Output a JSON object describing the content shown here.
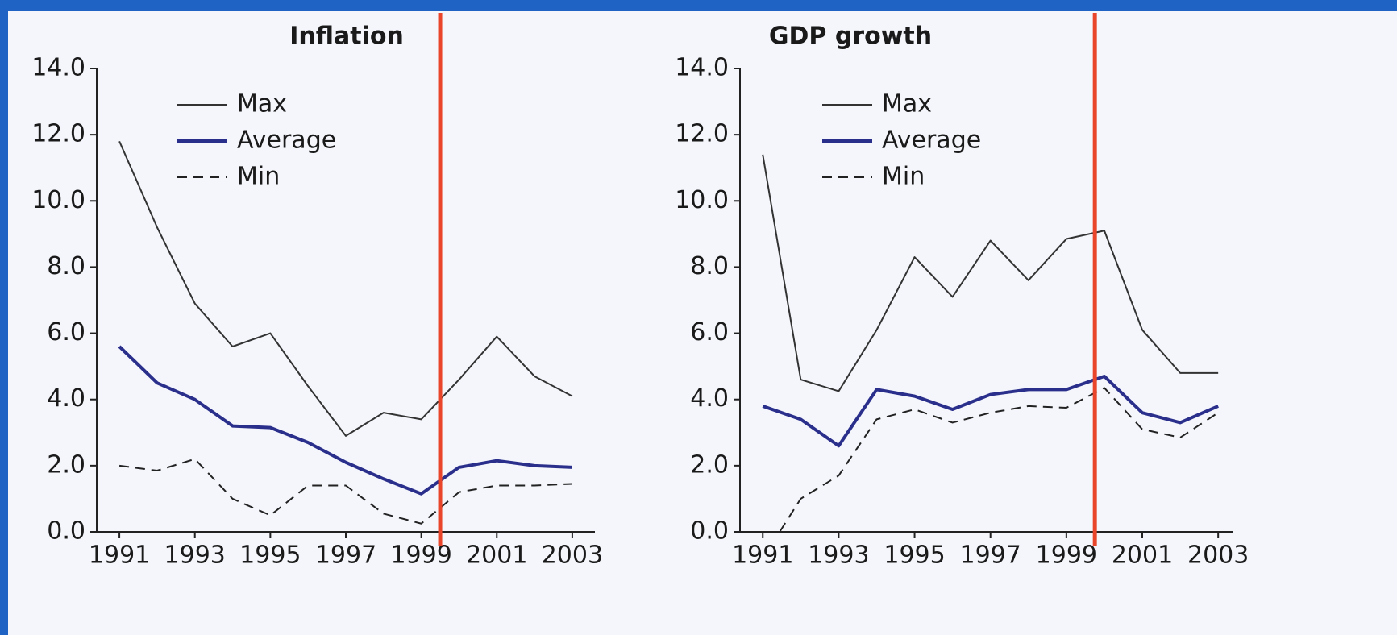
{
  "chart_data": [
    {
      "type": "line",
      "title": "Inflation",
      "x": [
        1991,
        1992,
        1993,
        1994,
        1995,
        1996,
        1997,
        1998,
        1999,
        2000,
        2001,
        2002,
        2003
      ],
      "series": [
        {
          "name": "Max",
          "color": "#333333",
          "style": "solid",
          "values": [
            11.8,
            9.2,
            6.9,
            5.6,
            6.0,
            4.4,
            2.9,
            3.6,
            3.4,
            4.6,
            5.9,
            4.7,
            4.1
          ]
        },
        {
          "name": "Average",
          "color": "#2b2f8c",
          "style": "thick",
          "values": [
            5.6,
            4.5,
            4.0,
            3.2,
            3.15,
            2.7,
            2.1,
            1.6,
            1.15,
            1.95,
            2.15,
            2.0,
            1.95
          ]
        },
        {
          "name": "Min",
          "color": "#222222",
          "style": "dashed",
          "values": [
            2.0,
            1.85,
            2.2,
            1.0,
            0.5,
            1.4,
            1.4,
            0.55,
            0.25,
            1.2,
            1.4,
            1.4,
            1.45
          ]
        }
      ],
      "xlim": [
        1990.4,
        2003.6
      ],
      "xticks": [
        1991,
        1993,
        1995,
        1997,
        1999,
        2001,
        2003
      ],
      "ylim": [
        0,
        14
      ],
      "yticks": [
        {
          "value": 0,
          "label": "0.0"
        },
        {
          "value": 2,
          "label": "2.0"
        },
        {
          "value": 4,
          "label": "4.0"
        },
        {
          "value": 6,
          "label": "6.0"
        },
        {
          "value": 8,
          "label": "8.0"
        },
        {
          "value": 10,
          "label": "10.0"
        },
        {
          "value": 12,
          "label": "12.0"
        },
        {
          "value": 14,
          "label": "14.0"
        }
      ],
      "vline": {
        "x": 1999.5,
        "color": "#e8452a"
      }
    },
    {
      "type": "line",
      "title": "GDP growth",
      "x": [
        1991,
        1992,
        1993,
        1994,
        1995,
        1996,
        1997,
        1998,
        1999,
        2000,
        2001,
        2002,
        2003
      ],
      "series": [
        {
          "name": "Max",
          "color": "#333333",
          "style": "solid",
          "values": [
            11.4,
            4.6,
            4.25,
            6.1,
            8.3,
            7.1,
            8.8,
            7.6,
            8.85,
            9.1,
            6.1,
            4.8,
            4.8
          ]
        },
        {
          "name": "Average",
          "color": "#2b2f8c",
          "style": "thick",
          "values": [
            3.8,
            3.4,
            2.6,
            4.3,
            4.1,
            3.7,
            4.15,
            4.3,
            4.3,
            4.7,
            3.6,
            3.3,
            3.8
          ]
        },
        {
          "name": "Min",
          "color": "#222222",
          "style": "dashed",
          "values": [
            -0.8,
            1.0,
            1.7,
            3.4,
            3.7,
            3.3,
            3.6,
            3.8,
            3.75,
            4.35,
            3.1,
            2.85,
            3.6
          ]
        }
      ],
      "xlim": [
        1990.4,
        2003.4
      ],
      "xticks": [
        1991,
        1993,
        1995,
        1997,
        1999,
        2001,
        2003
      ],
      "ylim": [
        0,
        14
      ],
      "yticks": [
        {
          "value": 0,
          "label": "0.0"
        },
        {
          "value": 2,
          "label": "2.0"
        },
        {
          "value": 4,
          "label": "4.0"
        },
        {
          "value": 6,
          "label": "6.0"
        },
        {
          "value": 8,
          "label": "8.0"
        },
        {
          "value": 10,
          "label": "10.0"
        },
        {
          "value": 12,
          "label": "12.0"
        },
        {
          "value": 14,
          "label": "14.0"
        }
      ],
      "vline": {
        "x": 1999.75,
        "color": "#e8452a"
      }
    }
  ]
}
